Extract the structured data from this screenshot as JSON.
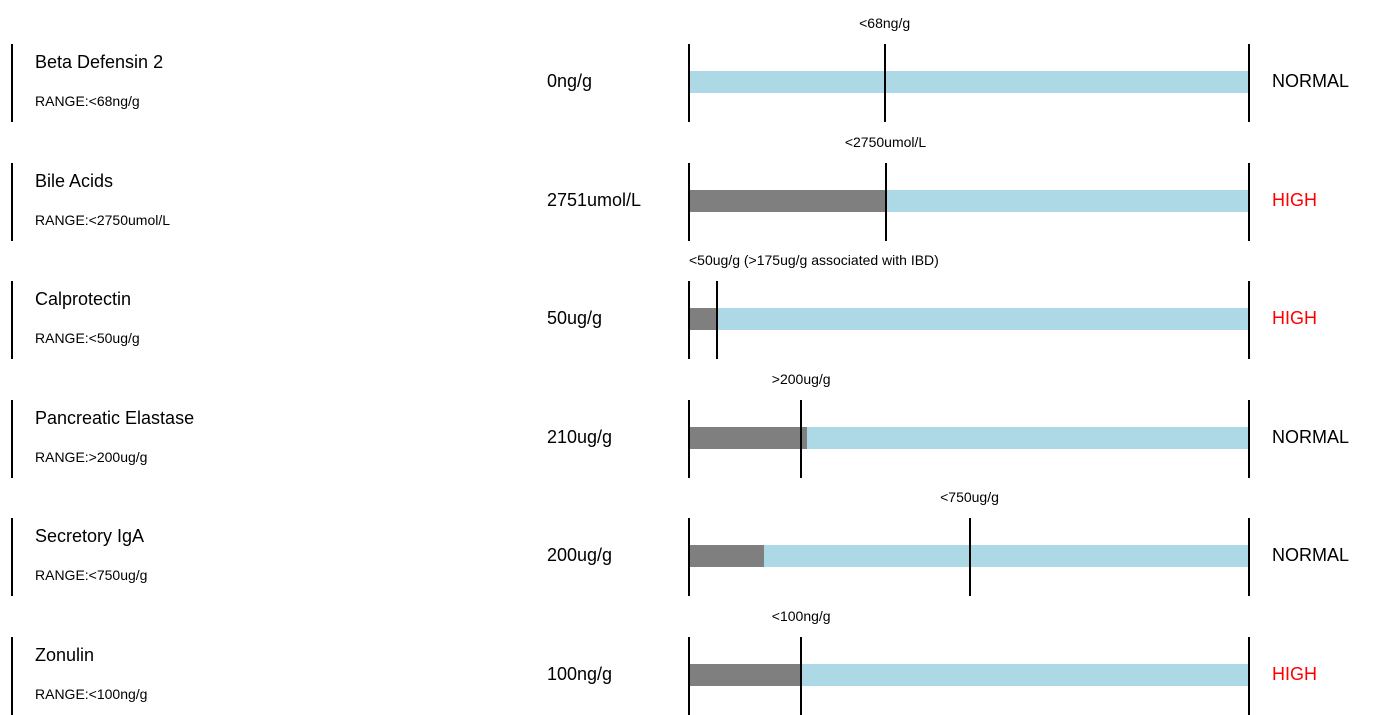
{
  "colors": {
    "track": "#add8e6",
    "fill": "#7f7f7f",
    "high": "#ff0000",
    "normal": "#000000"
  },
  "chart_data": {
    "type": "bar",
    "grid": false,
    "rows": [
      {
        "name": "Beta Defensin 2",
        "range_label": "RANGE:<68ng/g",
        "value_label": "0ng/g",
        "value": 0,
        "threshold_label": "<68ng/g",
        "threshold": 68,
        "scale_max": 195,
        "status": "NORMAL"
      },
      {
        "name": "Bile Acids",
        "range_label": "RANGE:<2750umol/L",
        "value_label": "2751umol/L",
        "value": 2751,
        "threshold_label": "<2750umol/L",
        "threshold": 2750,
        "scale_max": 7850,
        "status": "HIGH"
      },
      {
        "name": "Calprotectin",
        "range_label": "RANGE:<50ug/g",
        "value_label": "50ug/g",
        "value": 50,
        "threshold_label": "<50ug/g (>175ug/g associated with IBD)",
        "threshold": 50,
        "scale_max": 1000,
        "status": "HIGH"
      },
      {
        "name": "Pancreatic Elastase",
        "range_label": "RANGE:>200ug/g",
        "value_label": "210ug/g",
        "value": 210,
        "threshold_label": ">200ug/g",
        "threshold": 200,
        "scale_max": 1000,
        "status": "NORMAL"
      },
      {
        "name": "Secretory IgA",
        "range_label": "RANGE:<750ug/g",
        "value_label": "200ug/g",
        "value": 200,
        "threshold_label": "<750ug/g",
        "threshold": 750,
        "scale_max": 1500,
        "status": "NORMAL"
      },
      {
        "name": "Zonulin",
        "range_label": "RANGE:<100ng/g",
        "value_label": "100ng/g",
        "value": 100,
        "threshold_label": "<100ng/g",
        "threshold": 100,
        "scale_max": 500,
        "status": "HIGH"
      }
    ]
  }
}
